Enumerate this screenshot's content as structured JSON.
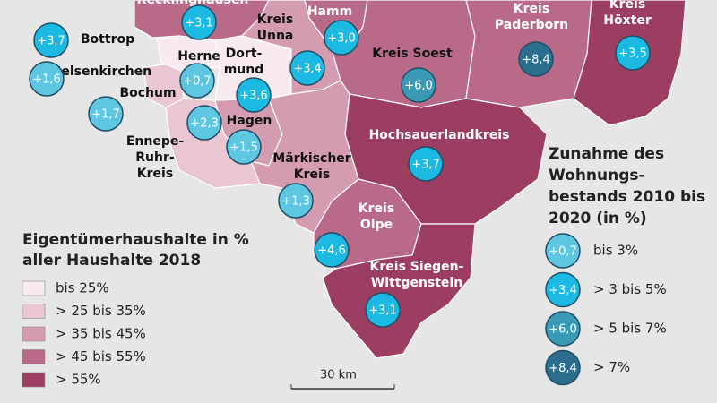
{
  "map": {
    "regions": [
      {
        "label": [
          "Recklinghausen"
        ],
        "share_class": 3,
        "change": "+3,1",
        "change_class": 1
      },
      {
        "label": [
          "Bottrop"
        ],
        "change": "+3,7",
        "change_class": 1
      },
      {
        "label": [
          "Gelsenkirchen"
        ],
        "change": "+1,6",
        "change_class": 0
      },
      {
        "label": [
          "Bochum"
        ],
        "share_class": 1,
        "change": "+1,7",
        "change_class": 0
      },
      {
        "label": [
          "Herne"
        ],
        "share_class": 0,
        "change": "+0,7",
        "change_class": 0
      },
      {
        "label": [
          "Ennepe-",
          "Ruhr-",
          "Kreis"
        ],
        "share_class": 1,
        "change": "+2,3",
        "change_class": 0
      },
      {
        "label": [
          "Hagen"
        ],
        "share_class": 2,
        "change": "+1,5",
        "change_class": 0
      },
      {
        "label": [
          "Dort-",
          "mund"
        ],
        "share_class": 0,
        "change": "+3,6",
        "change_class": 1
      },
      {
        "label": [
          "Kreis",
          "Unna"
        ],
        "share_class": 2,
        "change": "+3,4",
        "change_class": 1
      },
      {
        "label": [
          "Hamm"
        ],
        "share_class": 3,
        "change": "+3,0",
        "change_class": 1
      },
      {
        "label": [
          "Kreis Soest"
        ],
        "share_class": 3,
        "change": "+6,0",
        "change_class": 2
      },
      {
        "label": [
          "Kreis",
          "Paderborn"
        ],
        "share_class": 3,
        "change": "+8,4",
        "change_class": 3
      },
      {
        "label": [
          "Kreis",
          "Höxter"
        ],
        "share_class": 4,
        "change": "+3,5",
        "change_class": 1
      },
      {
        "label": [
          "Hochsauerlandkreis"
        ],
        "share_class": 4,
        "change": "+3,7",
        "change_class": 1
      },
      {
        "label": [
          "Märkischer",
          "Kreis"
        ],
        "share_class": 2,
        "change": "+1,3",
        "change_class": 0
      },
      {
        "label": [
          "Kreis",
          "Olpe"
        ],
        "share_class": 3,
        "change": "+4,6",
        "change_class": 1
      },
      {
        "label": [
          "Kreis Siegen-",
          "Wittgenstein"
        ],
        "share_class": 4,
        "change": "+3,1",
        "change_class": 1
      }
    ],
    "legend_share": {
      "title": [
        "Eigentümerhaushalte in %",
        "aller Haushalte 2018"
      ],
      "items": [
        {
          "label": "bis 25%",
          "color": "#f8eaef"
        },
        {
          "label": "> 25 bis 35%",
          "color": "#eac6d2"
        },
        {
          "label": "> 35 bis 45%",
          "color": "#d59bb0"
        },
        {
          "label": "> 45 bis 55%",
          "color": "#b86a88"
        },
        {
          "label": "> 55%",
          "color": "#9c3e61"
        }
      ]
    },
    "legend_change": {
      "title": [
        "Zunahme des",
        "Wohnungs-",
        "bestands 2010 bis",
        "2020 (in %)"
      ],
      "items": [
        {
          "sample": "+0,7",
          "label": "bis 3%",
          "color": "#5fc6e2"
        },
        {
          "sample": "+3,4",
          "label": "> 3 bis 5%",
          "color": "#1cb9e3"
        },
        {
          "sample": "+6,0",
          "label": "> 5 bis 7%",
          "color": "#3a9ab6"
        },
        {
          "sample": "+8,4",
          "label": "> 7%",
          "color": "#2b6e8e"
        }
      ]
    },
    "scale": "30 km"
  }
}
